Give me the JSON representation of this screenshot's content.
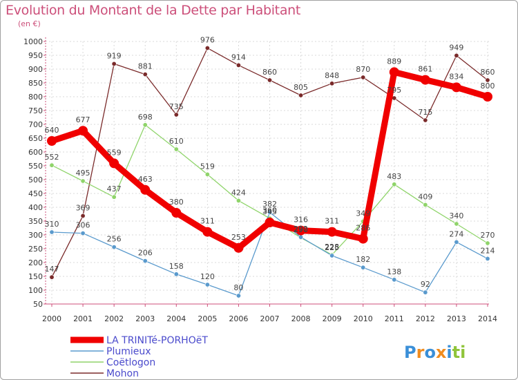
{
  "chart_data": {
    "type": "line",
    "title": "Evolution du Montant de la Dette par Habitant",
    "subtitle": "(en €)",
    "x": [
      "2000",
      "2001",
      "2002",
      "2003",
      "2004",
      "2005",
      "2006",
      "2007",
      "2008",
      "2009",
      "2010",
      "2011",
      "2012",
      "2013",
      "2014"
    ],
    "y_ticks": [
      50,
      100,
      150,
      200,
      250,
      300,
      350,
      400,
      450,
      500,
      550,
      600,
      650,
      700,
      750,
      800,
      850,
      900,
      950,
      1000
    ],
    "ylim": [
      50,
      1000
    ],
    "grid": true,
    "legend_position": "bottom-left",
    "series": [
      {
        "name": "Mohon",
        "color": "#7a2a2a",
        "values": [
          147,
          369,
          919,
          881,
          735,
          976,
          914,
          860,
          805,
          848,
          870,
          795,
          715,
          949,
          860
        ]
      },
      {
        "name": "Coëtlogon",
        "color": "#8fd46a",
        "values": [
          552,
          495,
          437,
          698,
          610,
          519,
          424,
          360,
          290,
          228,
          349,
          483,
          409,
          340,
          270
        ]
      },
      {
        "name": "Plumieux",
        "color": "#5a9acd",
        "values": [
          310,
          306,
          256,
          206,
          158,
          120,
          80,
          382,
          292,
          225,
          182,
          138,
          92,
          274,
          214
        ]
      },
      {
        "name": "LA TRINITé-PORHOëT",
        "color": "#f00000",
        "values": [
          640,
          677,
          559,
          463,
          380,
          311,
          253,
          345,
          316,
          311,
          286,
          889,
          861,
          834,
          800
        ]
      }
    ],
    "data_labels": {
      "Mohon": [
        "147",
        "369",
        "919",
        "881",
        "735",
        "976",
        "914",
        "860",
        "805",
        "848",
        "870",
        "795",
        "715",
        "949",
        "860"
      ],
      "Coëtlogon": [
        "552",
        "495",
        "437",
        "698",
        "610",
        "519",
        "424",
        "360",
        "290",
        "228",
        "349",
        "483",
        "409",
        "340",
        "270"
      ],
      "Plumieux": [
        "310",
        "306",
        "256",
        "206",
        "158",
        "120",
        "80",
        "382",
        "292",
        "225",
        "182",
        "138",
        "92",
        "274",
        "214"
      ],
      "LA TRINITé-PORHOëT": [
        "640",
        "677",
        "559",
        "463",
        "380",
        "311",
        "253",
        "345",
        "316",
        "311",
        "286",
        "889",
        "861",
        "834",
        "800"
      ]
    }
  },
  "legend": [
    {
      "name": "LA TRINITé-PORHOëT",
      "color": "#f00000"
    },
    {
      "name": "Plumieux",
      "color": "#5a9acd"
    },
    {
      "name": "Coëtlogon",
      "color": "#8fd46a"
    },
    {
      "name": "Mohon",
      "color": "#7a2a2a"
    }
  ],
  "legend_text_color": "#4a4acc",
  "logo": {
    "text": "Proxiti"
  }
}
